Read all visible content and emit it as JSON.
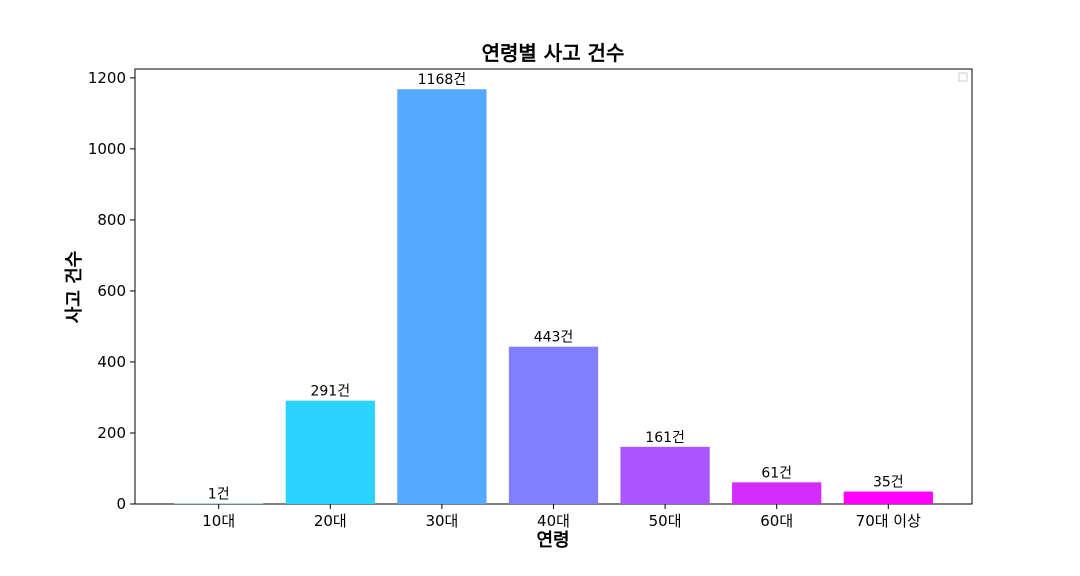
{
  "chart_data": {
    "type": "bar",
    "title": "연령별 사고 건수",
    "xlabel": "연령",
    "ylabel": "사고 건수",
    "categories": [
      "10대",
      "20대",
      "30대",
      "40대",
      "50대",
      "60대",
      "70대 이상"
    ],
    "values": [
      1,
      291,
      1168,
      443,
      161,
      61,
      35
    ],
    "value_labels": [
      "1건",
      "291건",
      "1168건",
      "443건",
      "161건",
      "61건",
      "35건"
    ],
    "colors": [
      "#80ffff",
      "#2bd4ff",
      "#55aaff",
      "#807fff",
      "#aa55ff",
      "#d42bff",
      "#ff00ff"
    ],
    "ylim": [
      0,
      1225
    ],
    "yticks": [
      0,
      200,
      400,
      600,
      800,
      1000,
      1200
    ],
    "ytick_labels": [
      "0",
      "200",
      "400",
      "600",
      "800",
      "1000",
      "1200"
    ],
    "grid": false,
    "legend": "top-right (empty)"
  }
}
